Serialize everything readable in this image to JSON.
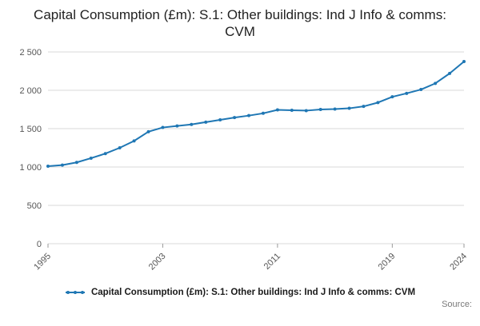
{
  "chart_data": {
    "type": "line",
    "title": "Capital Consumption (£m): S.1: Other buildings: Ind J Info & comms: CVM",
    "xlabel": "",
    "ylabel": "",
    "x": [
      1995,
      1996,
      1997,
      1998,
      1999,
      2000,
      2001,
      2002,
      2003,
      2004,
      2005,
      2006,
      2007,
      2008,
      2009,
      2010,
      2011,
      2012,
      2013,
      2014,
      2015,
      2016,
      2017,
      2018,
      2019,
      2020,
      2021,
      2022,
      2023,
      2024
    ],
    "series": [
      {
        "name": "Capital Consumption (£m): S.1: Other buildings: Ind J Info & comms: CVM",
        "values": [
          1010,
          1025,
          1060,
          1115,
          1175,
          1250,
          1340,
          1460,
          1515,
          1535,
          1555,
          1585,
          1615,
          1645,
          1670,
          1700,
          1745,
          1740,
          1735,
          1750,
          1755,
          1765,
          1790,
          1840,
          1915,
          1960,
          2010,
          2090,
          2220,
          2375
        ]
      }
    ],
    "ylim": [
      0,
      2500
    ],
    "yticks": [
      0,
      500,
      1000,
      1500,
      2000,
      2500
    ],
    "ytick_labels": [
      "0",
      "500",
      "1 000",
      "1 500",
      "2 000",
      "2 500"
    ],
    "xticks": [
      1995,
      2003,
      2011,
      2019,
      2024
    ],
    "xtick_labels": [
      "1995",
      "2003",
      "2011",
      "2019",
      "2024"
    ],
    "grid": true,
    "legend_position": "bottom",
    "line_color": "#1f77b4",
    "grid_color": "#d9d9d9",
    "tick_label_color": "#565656",
    "marker": "circle"
  },
  "legend": {
    "label": "Capital Consumption (£m): S.1: Other buildings: Ind J Info & comms: CVM"
  },
  "footer": {
    "source_label": "Source:"
  }
}
